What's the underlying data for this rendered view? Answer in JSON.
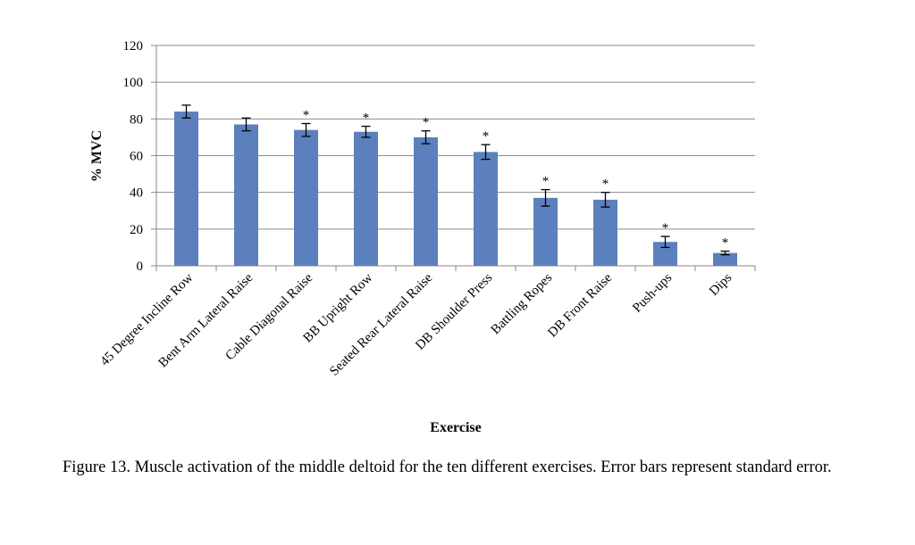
{
  "caption": "Figure 13.  Muscle activation of the middle deltoid for the ten different exercises.  Error bars represent standard error.",
  "colors": {
    "bar": "#5b80bd",
    "grid": "#8c8c8c",
    "axis": "#888888",
    "error": "#000000"
  },
  "chart_data": {
    "type": "bar",
    "title": "",
    "xlabel": "Exercise",
    "ylabel": "% MVC",
    "ylim": [
      0,
      120
    ],
    "yticks": [
      0,
      20,
      40,
      60,
      80,
      100,
      120
    ],
    "grid": true,
    "categories": [
      "45 Degree Incline Row",
      "Bent Arm Lateral Raise",
      "Cable Diagonal Raise",
      "BB Upright Row",
      "Seated Rear Lateral Raise",
      "DB Shoulder Press",
      "Battling Ropes",
      "DB Front Raise",
      "Push-ups",
      "Dips"
    ],
    "values": [
      84,
      77,
      74,
      73,
      70,
      62,
      37,
      36,
      13,
      7
    ],
    "errors": [
      3.5,
      3.5,
      3.5,
      3,
      3.5,
      4,
      4.5,
      4,
      3,
      1
    ],
    "annotations": [
      "",
      "",
      "*",
      "*",
      "*",
      "*",
      "*",
      "*",
      "*",
      "*"
    ]
  }
}
